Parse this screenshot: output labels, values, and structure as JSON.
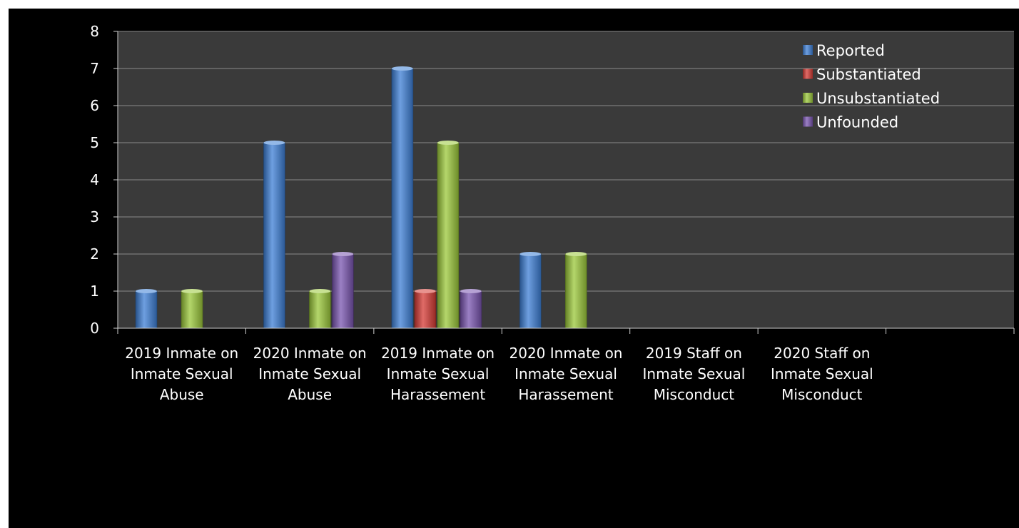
{
  "chart_data": {
    "type": "bar",
    "title": "",
    "xlabel": "",
    "ylabel": "",
    "ylim": [
      0,
      8
    ],
    "yticks": [
      "0",
      "1",
      "2",
      "3",
      "4",
      "5",
      "6",
      "7",
      "8"
    ],
    "grid": true,
    "legend_position": "top-right",
    "categories": [
      [
        "2019 Inmate on",
        "Inmate Sexual",
        "Abuse"
      ],
      [
        "2020 Inmate on",
        "Inmate Sexual",
        "Abuse"
      ],
      [
        "2019 Inmate on",
        "Inmate Sexual",
        "Harassement"
      ],
      [
        "2020 Inmate on",
        "Inmate Sexual",
        "Harassement"
      ],
      [
        "2019 Staff on",
        "Inmate Sexual",
        "Misconduct"
      ],
      [
        "2020 Staff on",
        "Inmate Sexual",
        "Misconduct"
      ],
      []
    ],
    "series": [
      {
        "name": "Reported",
        "color": "#3d7fd6",
        "values": [
          1,
          5,
          7,
          2,
          0,
          0,
          0
        ]
      },
      {
        "name": "Substantiated",
        "color": "#d63a34",
        "values": [
          0,
          0,
          1,
          0,
          0,
          0,
          0
        ]
      },
      {
        "name": "Unsubstantiated",
        "color": "#9bc83a",
        "values": [
          1,
          1,
          5,
          2,
          0,
          0,
          0
        ]
      },
      {
        "name": "Unfounded",
        "color": "#7a55b0",
        "values": [
          0,
          2,
          1,
          0,
          0,
          0,
          0
        ]
      }
    ]
  }
}
